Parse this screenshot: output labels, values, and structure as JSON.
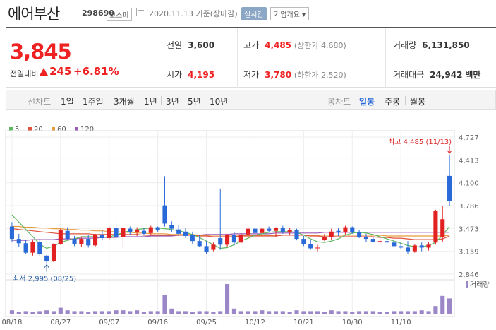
{
  "header": {
    "stock_name": "에어부산",
    "stock_code": "298690",
    "market": "코스피",
    "date": "2020.11.13 기준(장마감)",
    "realtime_label": "실시간",
    "company_info_label": "기업개요 ▾"
  },
  "price": {
    "current": "3,845",
    "change_label": "전일대비",
    "change_value": "245",
    "change_pct": "+6.81%"
  },
  "summary": {
    "prev_close": {
      "label": "전일",
      "value": "3,600"
    },
    "high": {
      "label": "고가",
      "value": "4,485",
      "sub": "(상한가 4,680)"
    },
    "volume": {
      "label": "거래량",
      "value": "6,131,850"
    },
    "open": {
      "label": "시가",
      "value": "4,195"
    },
    "low": {
      "label": "저가",
      "value": "3,780",
      "sub": "(하한가 2,520)"
    },
    "amount": {
      "label": "거래대금",
      "value": "24,942",
      "unit": "백만"
    }
  },
  "period_bar": {
    "line_chart_label": "선차트",
    "line_periods": [
      "1일",
      "1주일",
      "3개월",
      "1년",
      "3년",
      "5년",
      "10년"
    ],
    "candle_chart_label": "봉차트",
    "candle_periods": [
      "일봉",
      "주봉",
      "월봉"
    ],
    "selected_candle": "일봉"
  },
  "colors": {
    "up": "#e22222",
    "down": "#2a6ad8",
    "ma5": "#5cb85c",
    "ma20": "#e0533c",
    "ma60": "#e89b3c",
    "ma120": "#9b59b6",
    "volume": "#9b86c7"
  },
  "chart_data": {
    "type": "candlestick",
    "legend": [
      {
        "name": "5",
        "color": "#5cb85c"
      },
      {
        "name": "20",
        "color": "#e0533c"
      },
      {
        "name": "60",
        "color": "#e89b3c"
      },
      {
        "name": "120",
        "color": "#9b59b6"
      }
    ],
    "y_ticks": [
      4727,
      4413,
      4100,
      3786,
      3473,
      3159,
      2846
    ],
    "y_tick_labels": [
      "4,727",
      "4,413",
      "4,100",
      "3,786",
      "3,473",
      "3,159",
      "2,846"
    ],
    "ylim": [
      2846,
      4727
    ],
    "x_labels": [
      "08/18",
      "08/27",
      "09/07",
      "09/16",
      "09/25",
      "10/12",
      "10/21",
      "10/30",
      "11/10"
    ],
    "x_label_index": [
      0,
      7,
      14,
      21,
      28,
      35,
      42,
      49,
      56
    ],
    "high_annotation": "최고 4,485 (11/13)",
    "low_annotation": "최저 2,995 (08/25)",
    "volume_label": "거래량",
    "candles": [
      {
        "o": 3500,
        "h": 3560,
        "l": 3290,
        "c": 3330
      },
      {
        "o": 3330,
        "h": 3400,
        "l": 3220,
        "c": 3270
      },
      {
        "o": 3270,
        "h": 3320,
        "l": 3120,
        "c": 3140
      },
      {
        "o": 3140,
        "h": 3310,
        "l": 3100,
        "c": 3290
      },
      {
        "o": 3290,
        "h": 3330,
        "l": 3100,
        "c": 3120
      },
      {
        "o": 3100,
        "h": 3110,
        "l": 2995,
        "c": 3020
      },
      {
        "o": 3020,
        "h": 3270,
        "l": 3010,
        "c": 3260
      },
      {
        "o": 3260,
        "h": 3470,
        "l": 3250,
        "c": 3450
      },
      {
        "o": 3440,
        "h": 3490,
        "l": 3310,
        "c": 3330
      },
      {
        "o": 3330,
        "h": 3370,
        "l": 3230,
        "c": 3260
      },
      {
        "o": 3260,
        "h": 3350,
        "l": 3220,
        "c": 3330
      },
      {
        "o": 3330,
        "h": 3380,
        "l": 3210,
        "c": 3240
      },
      {
        "o": 3240,
        "h": 3400,
        "l": 3220,
        "c": 3390
      },
      {
        "o": 3390,
        "h": 3450,
        "l": 3310,
        "c": 3340
      },
      {
        "o": 3340,
        "h": 3500,
        "l": 3320,
        "c": 3480
      },
      {
        "o": 3480,
        "h": 3550,
        "l": 3340,
        "c": 3360
      },
      {
        "o": 3360,
        "h": 3500,
        "l": 3200,
        "c": 3480
      },
      {
        "o": 3470,
        "h": 3500,
        "l": 3380,
        "c": 3420
      },
      {
        "o": 3420,
        "h": 3490,
        "l": 3370,
        "c": 3450
      },
      {
        "o": 3440,
        "h": 3480,
        "l": 3380,
        "c": 3400
      },
      {
        "o": 3410,
        "h": 3510,
        "l": 3390,
        "c": 3490
      },
      {
        "o": 3490,
        "h": 3500,
        "l": 3420,
        "c": 3450
      },
      {
        "o": 3790,
        "h": 4190,
        "l": 3500,
        "c": 3540
      },
      {
        "o": 3520,
        "h": 3570,
        "l": 3420,
        "c": 3470
      },
      {
        "o": 3460,
        "h": 3520,
        "l": 3370,
        "c": 3400
      },
      {
        "o": 3430,
        "h": 3480,
        "l": 3340,
        "c": 3370
      },
      {
        "o": 3380,
        "h": 3430,
        "l": 3260,
        "c": 3300
      },
      {
        "o": 3300,
        "h": 3380,
        "l": 3220,
        "c": 3230
      },
      {
        "o": 3230,
        "h": 3300,
        "l": 3120,
        "c": 3150
      },
      {
        "o": 3180,
        "h": 3280,
        "l": 3160,
        "c": 3250
      },
      {
        "o": 3340,
        "h": 4020,
        "l": 3180,
        "c": 3250
      },
      {
        "o": 3250,
        "h": 3400,
        "l": 3220,
        "c": 3380
      },
      {
        "o": 3380,
        "h": 3420,
        "l": 3240,
        "c": 3280
      },
      {
        "o": 3280,
        "h": 3410,
        "l": 3270,
        "c": 3390
      },
      {
        "o": 3390,
        "h": 3500,
        "l": 3370,
        "c": 3470
      },
      {
        "o": 3470,
        "h": 3500,
        "l": 3370,
        "c": 3410
      },
      {
        "o": 3410,
        "h": 3490,
        "l": 3390,
        "c": 3470
      },
      {
        "o": 3470,
        "h": 3500,
        "l": 3420,
        "c": 3440
      },
      {
        "o": 3440,
        "h": 3490,
        "l": 3360,
        "c": 3480
      },
      {
        "o": 3480,
        "h": 3510,
        "l": 3400,
        "c": 3430
      },
      {
        "o": 3430,
        "h": 3480,
        "l": 3380,
        "c": 3450
      },
      {
        "o": 3450,
        "h": 3470,
        "l": 3310,
        "c": 3330
      },
      {
        "o": 3330,
        "h": 3370,
        "l": 3230,
        "c": 3260
      },
      {
        "o": 3260,
        "h": 3320,
        "l": 3180,
        "c": 3200
      },
      {
        "o": 3200,
        "h": 3250,
        "l": 3160,
        "c": 3210
      },
      {
        "o": 3320,
        "h": 3400,
        "l": 3300,
        "c": 3350
      },
      {
        "o": 3350,
        "h": 3470,
        "l": 3320,
        "c": 3430
      },
      {
        "o": 3440,
        "h": 3480,
        "l": 3370,
        "c": 3420
      },
      {
        "o": 3420,
        "h": 3510,
        "l": 3390,
        "c": 3490
      },
      {
        "o": 3490,
        "h": 3500,
        "l": 3400,
        "c": 3420
      },
      {
        "o": 3420,
        "h": 3450,
        "l": 3340,
        "c": 3360
      },
      {
        "o": 3360,
        "h": 3400,
        "l": 3290,
        "c": 3330
      },
      {
        "o": 3330,
        "h": 3350,
        "l": 3280,
        "c": 3290
      },
      {
        "o": 3290,
        "h": 3340,
        "l": 3260,
        "c": 3300
      },
      {
        "o": 3300,
        "h": 3360,
        "l": 3270,
        "c": 3280
      },
      {
        "o": 3280,
        "h": 3320,
        "l": 3220,
        "c": 3230
      },
      {
        "o": 3230,
        "h": 3290,
        "l": 3190,
        "c": 3210
      },
      {
        "o": 3210,
        "h": 3300,
        "l": 3120,
        "c": 3160
      },
      {
        "o": 3160,
        "h": 3260,
        "l": 3140,
        "c": 3240
      },
      {
        "o": 3240,
        "h": 3280,
        "l": 3160,
        "c": 3210
      },
      {
        "o": 3210,
        "h": 3290,
        "l": 3170,
        "c": 3250
      },
      {
        "o": 3280,
        "h": 3730,
        "l": 3250,
        "c": 3710
      },
      {
        "o": 3350,
        "h": 3780,
        "l": 3290,
        "c": 3600
      },
      {
        "o": 4195,
        "h": 4485,
        "l": 3780,
        "c": 3845
      }
    ],
    "ma5": [
      3660,
      3560,
      3460,
      3360,
      3260,
      3200,
      3230,
      3280,
      3310,
      3330,
      3360,
      3360,
      3360,
      3350,
      3360,
      3380,
      3420,
      3440,
      3460,
      3470,
      3480,
      3480,
      3470,
      3460,
      3440,
      3420,
      3390,
      3350,
      3300,
      3250,
      3200,
      3210,
      3250,
      3300,
      3340,
      3380,
      3400,
      3420,
      3430,
      3430,
      3430,
      3420,
      3380,
      3330,
      3290,
      3280,
      3300,
      3330,
      3380,
      3410,
      3420,
      3410,
      3390,
      3360,
      3330,
      3300,
      3270,
      3240,
      3220,
      3220,
      3240,
      3280,
      3380,
      3500
    ],
    "ma20": [
      3470,
      3460,
      3450,
      3440,
      3430,
      3420,
      3410,
      3400,
      3400,
      3400,
      3400,
      3400,
      3390,
      3390,
      3390,
      3390,
      3390,
      3390,
      3390,
      3380,
      3380,
      3380,
      3380,
      3380,
      3380,
      3380,
      3380,
      3370,
      3370,
      3360,
      3360,
      3360,
      3360,
      3370,
      3370,
      3370,
      3370,
      3370,
      3370,
      3380,
      3380,
      3380,
      3380,
      3370,
      3370,
      3360,
      3360,
      3360,
      3360,
      3360,
      3360,
      3360,
      3360,
      3350,
      3350,
      3340,
      3340,
      3330,
      3320,
      3320,
      3320,
      3320,
      3330,
      3370
    ],
    "ma60": [
      3500,
      3500,
      3490,
      3490,
      3480,
      3480,
      3470,
      3470,
      3460,
      3460,
      3450,
      3450,
      3440,
      3440,
      3430,
      3430,
      3420,
      3420,
      3410,
      3410,
      3400,
      3400,
      3400,
      3390,
      3390,
      3390,
      3390,
      3380,
      3380,
      3380,
      3380,
      3380,
      3380,
      3380,
      3380,
      3380,
      3380,
      3380,
      3380,
      3380,
      3380,
      3380,
      3380,
      3380,
      3380,
      3380,
      3380,
      3380,
      3380,
      3380,
      3380,
      3380,
      3380,
      3380,
      3370,
      3370,
      3370,
      3370,
      3370,
      3370,
      3370,
      3370,
      3370,
      3380
    ],
    "ma120": [
      3310,
      3310,
      3310,
      3320,
      3320,
      3320,
      3320,
      3330,
      3330,
      3330,
      3340,
      3340,
      3340,
      3350,
      3350,
      3350,
      3360,
      3360,
      3360,
      3360,
      3370,
      3370,
      3370,
      3370,
      3380,
      3380,
      3380,
      3380,
      3390,
      3390,
      3390,
      3390,
      3400,
      3400,
      3400,
      3400,
      3400,
      3400,
      3410,
      3410,
      3410,
      3410,
      3410,
      3410,
      3410,
      3420,
      3420,
      3420,
      3420,
      3420,
      3420,
      3420,
      3420,
      3420,
      3420,
      3420,
      3420,
      3420,
      3420,
      3420,
      3420,
      3420,
      3420,
      3420
    ],
    "volume": [
      4,
      2,
      3,
      2,
      3,
      4,
      3,
      7,
      4,
      3,
      3,
      2,
      3,
      3,
      3,
      4,
      4,
      3,
      4,
      2,
      3,
      3,
      22,
      6,
      3,
      3,
      2,
      3,
      3,
      2,
      3,
      35,
      6,
      3,
      3,
      3,
      4,
      3,
      3,
      3,
      2,
      4,
      3,
      3,
      3,
      2,
      4,
      3,
      3,
      2,
      3,
      3,
      3,
      2,
      2,
      3,
      3,
      3,
      3,
      4,
      3,
      9,
      21,
      18
    ]
  }
}
